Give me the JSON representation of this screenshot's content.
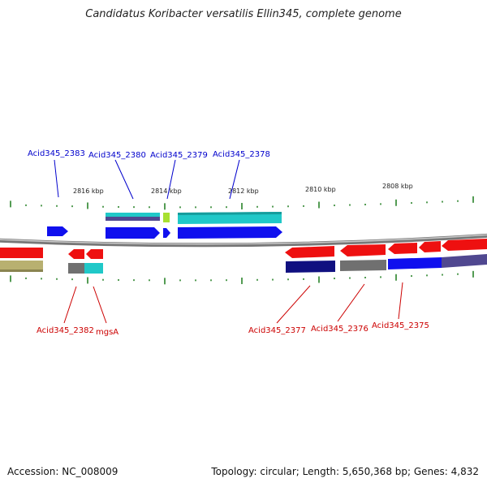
{
  "title": "Candidatus Koribacter versatilis Ellin345, complete genome",
  "footer": {
    "accession": "Accession: NC_008009",
    "topology": "Topology: circular; Length: 5,650,368 bp; Genes: 4,832"
  },
  "scale_ticks": [
    "2816 kbp",
    "2814 kbp",
    "2812 kbp",
    "2810 kbp",
    "2808 kbp"
  ],
  "colors": {
    "forward_gene": "#1010ee",
    "reverse_gene": "#ee1010",
    "cog_teal": "#20c8c8",
    "cog_gray": "#707070",
    "cog_olive": "#b8b070",
    "cog_navy": "#101080",
    "cog_lime": "#a8e030",
    "cog_purple": "#504890",
    "tick_green": "#1a7a1a",
    "backbone": "#888888",
    "label_top": "#0000cc",
    "label_bottom": "#cc0000"
  },
  "labels_top": [
    "Acid345_2383",
    "Acid345_2380",
    "Acid345_2379",
    "Acid345_2378"
  ],
  "labels_bottom": [
    "Acid345_2382",
    "mgsA",
    "Acid345_2377",
    "Acid345_2376",
    "Acid345_2375"
  ]
}
